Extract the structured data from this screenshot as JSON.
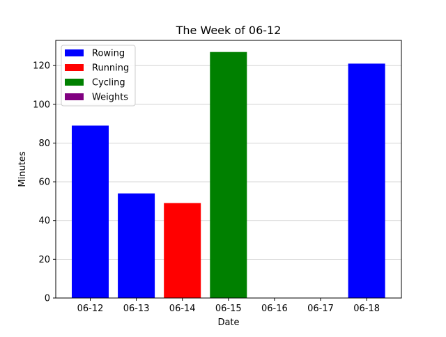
{
  "chart_data": {
    "type": "bar",
    "title": "The Week of 06-12",
    "xlabel": "Date",
    "ylabel": "Minutes",
    "categories": [
      "06-12",
      "06-13",
      "06-14",
      "06-15",
      "06-16",
      "06-17",
      "06-18"
    ],
    "values": [
      89,
      54,
      49,
      127,
      0,
      0,
      121
    ],
    "bar_series": [
      "Rowing",
      "Rowing",
      "Running",
      "Cycling",
      "",
      "",
      "Rowing"
    ],
    "ylim": [
      0,
      133
    ],
    "yticks": [
      0,
      20,
      40,
      60,
      80,
      100,
      120
    ],
    "grid": "horizontal",
    "legend_placement": "upper-left",
    "series": [
      {
        "name": "Rowing",
        "color": "#0000ff"
      },
      {
        "name": "Running",
        "color": "#ff0000"
      },
      {
        "name": "Cycling",
        "color": "#008000"
      },
      {
        "name": "Weights",
        "color": "#800080"
      }
    ]
  }
}
